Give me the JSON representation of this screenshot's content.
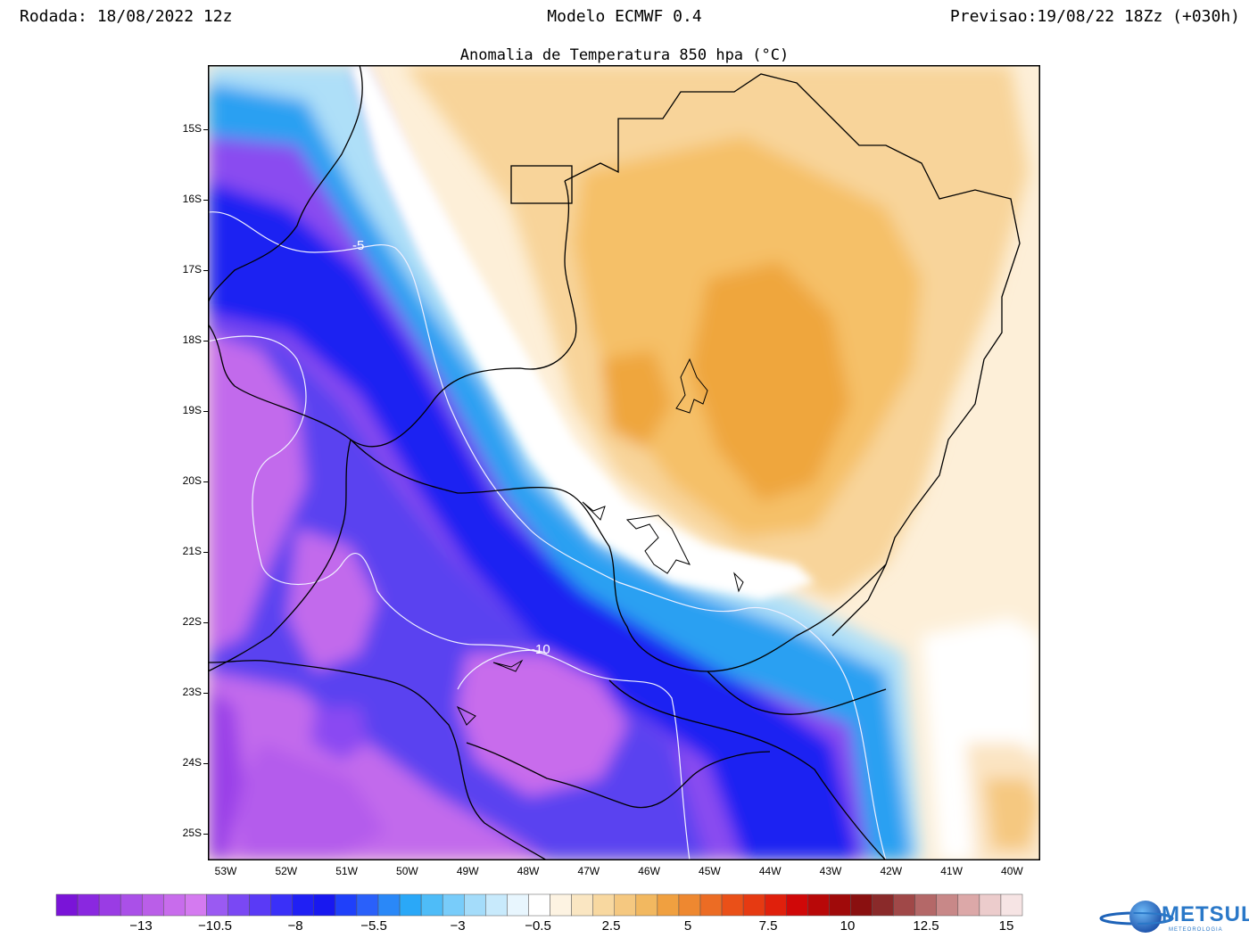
{
  "header": {
    "run": "Rodada: 18/08/2022 12z",
    "model": "Modelo ECMWF 0.4",
    "forecast": "Previsao:19/08/22 18Zz (+030h)"
  },
  "map": {
    "title": "Anomalia de Temperatura 850 hpa (°C)",
    "lat_labels": [
      "15S",
      "16S",
      "17S",
      "18S",
      "19S",
      "20S",
      "21S",
      "22S",
      "23S",
      "24S",
      "25S"
    ],
    "lon_labels": [
      "53W",
      "52W",
      "51W",
      "50W",
      "49W",
      "48W",
      "47W",
      "46W",
      "45W",
      "44W",
      "43W",
      "42W",
      "41W",
      "40W"
    ],
    "contour_labels": [
      "-5",
      "-10"
    ],
    "colors": {
      "purple": "#8a3ff0",
      "magenta": "#c86cec",
      "deep_blue": "#1a1ff0",
      "blue": "#3a55f8",
      "sky": "#2aa8f0",
      "light_sky": "#a8dcf8",
      "white": "#ffffff",
      "cream": "#fdefd8",
      "light_orange": "#f9d9a2",
      "orange": "#f5c069",
      "dark_orange": "#eea23a"
    }
  },
  "colorbar": {
    "labels": [
      "−13",
      "−10.5",
      "−8",
      "−5.5",
      "−3",
      "−0.5",
      "2.5",
      "5",
      "7.5",
      "10",
      "12.5",
      "15"
    ],
    "colors": [
      "#7a14d8",
      "#8a28e0",
      "#9a3ce4",
      "#aa50e8",
      "#ba5ee8",
      "#c86cec",
      "#d47af0",
      "#9a5af2",
      "#7a48f4",
      "#5a3af6",
      "#3a30f8",
      "#2020f4",
      "#1818f0",
      "#1f40fa",
      "#2a60fa",
      "#2a88f8",
      "#2aa8f8",
      "#4ebcf8",
      "#78ccfa",
      "#a4dcfa",
      "#c8eafc",
      "#e8f6fe",
      "#ffffff",
      "#fdf3e2",
      "#fae6c2",
      "#f8d8a0",
      "#f5c880",
      "#f2b860",
      "#f0a040",
      "#ee8830",
      "#ec6c24",
      "#ea5018",
      "#e63a12",
      "#e0200c",
      "#d00808",
      "#b80808",
      "#a00a0a",
      "#8a1010",
      "#8a2a2a",
      "#a04848",
      "#b46868",
      "#c88888",
      "#dca8a8",
      "#eccccc",
      "#f6e4e4"
    ]
  },
  "logo": {
    "name": "METSUL",
    "sub": "METEOROLOGIA"
  }
}
